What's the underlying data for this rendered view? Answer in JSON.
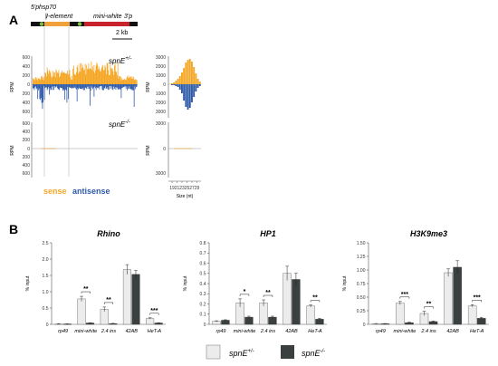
{
  "panel_a": {
    "label": "A",
    "construct": {
      "labels": {
        "five_p": "5'p",
        "hsp70": "hsp70",
        "i_element": "I-element",
        "mini_white": "mini-white",
        "three_p": "3'p"
      },
      "scale_bar": "2 kb",
      "colors": {
        "backbone": "#111111",
        "i_element": "#f0a13a",
        "mini_white": "#c8232c",
        "marker": "#7ac143"
      }
    },
    "tracks": {
      "hetero_label": "spnE",
      "hetero_sup": "+/-",
      "mutant_label": "spnE",
      "mutant_sup": "-/-",
      "ylabel": "RPM",
      "yticks": [
        "600",
        "400",
        "200",
        "0",
        "200",
        "400",
        "600"
      ]
    },
    "size_hist": {
      "ylabel": "RPM",
      "yticks": [
        "3000",
        "2000",
        "1000",
        "0",
        "1000",
        "2000",
        "3000"
      ],
      "xlabel": "Size (nt)",
      "xticks": [
        "19",
        "21",
        "23",
        "25",
        "27",
        "29"
      ]
    },
    "legend": {
      "sense": "sense",
      "antisense": "antisense",
      "sense_color": "#f5a623",
      "antisense_color": "#2f5aa8"
    }
  },
  "panel_b": {
    "label": "B",
    "legend": {
      "het_label": "spnE",
      "het_sup": "+/-",
      "mut_label": "spnE",
      "mut_sup": "-/-",
      "het_color": "#ececec",
      "mut_color": "#3a3f3f"
    },
    "chart_data": [
      {
        "type": "bar",
        "title": "Rhino",
        "ylabel": "% input",
        "ylim": [
          0,
          2.5
        ],
        "yticks": [
          "0",
          "0.5",
          "1.0",
          "1.5",
          "2.0",
          "2.5"
        ],
        "categories": [
          "rp49",
          "mini-white",
          "2.4 ins",
          "42AB",
          "HeT-A"
        ],
        "series": [
          {
            "name": "spnE +/-",
            "values": [
              0.01,
              0.78,
              0.46,
              1.68,
              0.18
            ],
            "errors": [
              0.01,
              0.08,
              0.07,
              0.15,
              0.02
            ]
          },
          {
            "name": "spnE -/-",
            "values": [
              0.01,
              0.04,
              0.02,
              1.53,
              0.04
            ],
            "errors": [
              0.005,
              0.01,
              0.01,
              0.12,
              0.01
            ]
          }
        ],
        "significance": [
          "",
          "**",
          "**",
          "",
          "***"
        ]
      },
      {
        "type": "bar",
        "title": "HP1",
        "ylabel": "% input",
        "ylim": [
          0,
          0.8
        ],
        "yticks": [
          "0",
          "0.1",
          "0.2",
          "0.3",
          "0.4",
          "0.5",
          "0.6",
          "0.7",
          "0.8"
        ],
        "categories": [
          "rp49",
          "mini-white",
          "2.4 ins",
          "42AB",
          "HeT-A"
        ],
        "series": [
          {
            "name": "spnE +/-",
            "values": [
              0.03,
              0.21,
              0.21,
              0.5,
              0.18
            ],
            "errors": [
              0.005,
              0.04,
              0.03,
              0.07,
              0.01
            ]
          },
          {
            "name": "spnE -/-",
            "values": [
              0.04,
              0.07,
              0.07,
              0.44,
              0.05
            ],
            "errors": [
              0.005,
              0.01,
              0.01,
              0.06,
              0.01
            ]
          }
        ],
        "significance": [
          "",
          "*",
          "**",
          "",
          "**"
        ]
      },
      {
        "type": "bar",
        "title": "H3K9me3",
        "ylabel": "% input",
        "ylim": [
          0,
          1.5
        ],
        "yticks": [
          "0",
          "0.25",
          "0.50",
          "0.75",
          "1.00",
          "1.25",
          "1.50"
        ],
        "categories": [
          "rp49",
          "mini-white",
          "2.4 ins",
          "42AB",
          "HeT-A"
        ],
        "series": [
          {
            "name": "spnE +/-",
            "values": [
              0.01,
              0.39,
              0.2,
              0.95,
              0.34
            ],
            "errors": [
              0.005,
              0.03,
              0.04,
              0.07,
              0.02
            ]
          },
          {
            "name": "spnE -/-",
            "values": [
              0.01,
              0.03,
              0.05,
              1.05,
              0.11
            ],
            "errors": [
              0.005,
              0.01,
              0.01,
              0.12,
              0.02
            ]
          }
        ],
        "significance": [
          "",
          "***",
          "**",
          "",
          "***"
        ]
      }
    ]
  }
}
